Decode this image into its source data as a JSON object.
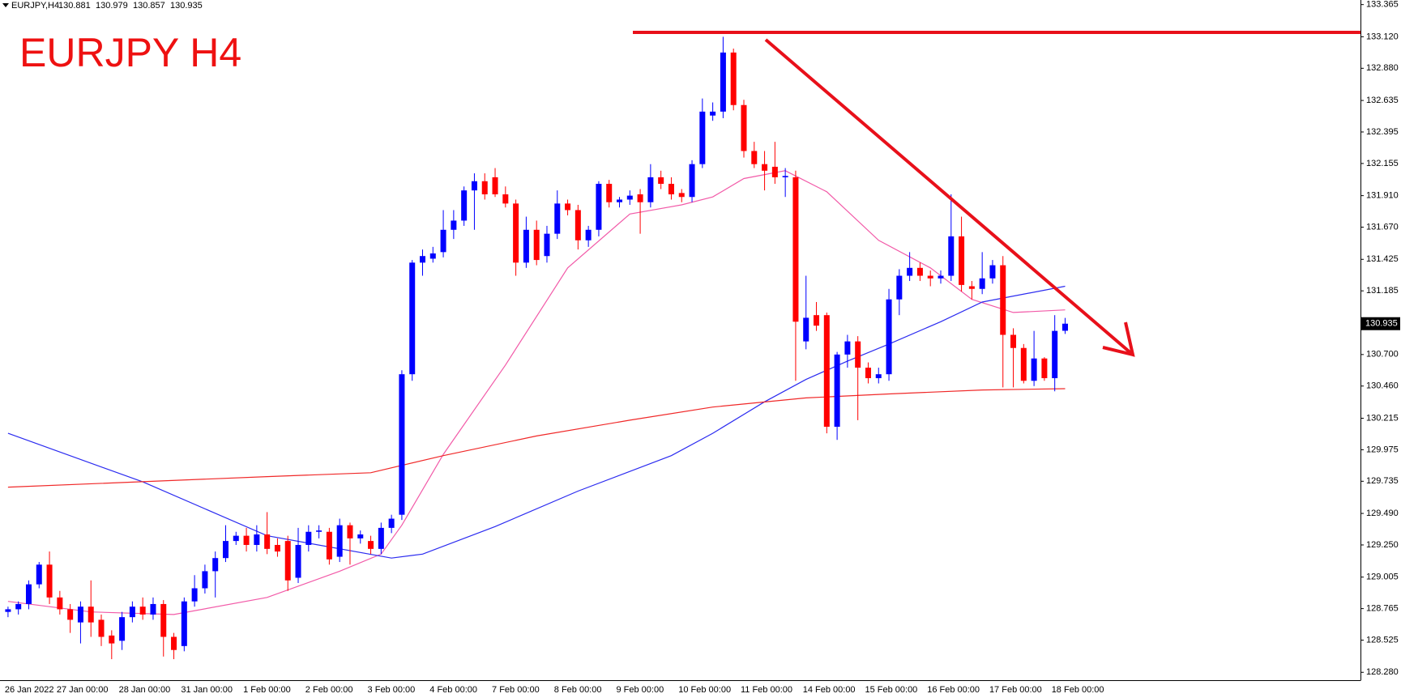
{
  "chart_data": {
    "type": "candlestick",
    "title": "EURJPY H4",
    "symbol": "EURJPY,H4",
    "quote": [
      130.881,
      130.979,
      130.857,
      130.935
    ],
    "last_price": 130.935,
    "up_color": "#0000ff",
    "down_color": "#ff0000",
    "grid": false,
    "ylim": [
      128.22,
      133.4
    ],
    "yticks": [
      133.365,
      {
        "value": 133.12,
        "label": "133.120"
      },
      {
        "value": 132.88,
        "label": "132.880"
      },
      132.635,
      132.395,
      132.155,
      {
        "value": 131.91,
        "label": "131.910"
      },
      {
        "value": 131.67,
        "label": "131.670"
      },
      131.425,
      131.185,
      {
        "value": 130.7,
        "label": "130.700"
      },
      {
        "value": 130.46,
        "label": "130.460"
      },
      130.215,
      129.975,
      129.735,
      {
        "value": 129.49,
        "label": "129.490"
      },
      {
        "value": 129.25,
        "label": "129.250"
      },
      129.005,
      128.765,
      128.525,
      {
        "value": 128.28,
        "label": "128.280"
      }
    ],
    "categories": [
      "26 Jan 2022",
      null,
      null,
      null,
      null,
      "27 Jan 00:00",
      null,
      null,
      null,
      null,
      null,
      "28 Jan 00:00",
      null,
      null,
      null,
      null,
      null,
      "31 Jan 00:00",
      null,
      null,
      null,
      null,
      null,
      "1 Feb 00:00",
      null,
      null,
      null,
      null,
      null,
      "2 Feb 00:00",
      null,
      null,
      null,
      null,
      null,
      "3 Feb 00:00",
      null,
      null,
      null,
      null,
      null,
      "4 Feb 00:00",
      null,
      null,
      null,
      null,
      null,
      "7 Feb 00:00",
      null,
      null,
      null,
      null,
      null,
      "8 Feb 00:00",
      null,
      null,
      null,
      null,
      null,
      "9 Feb 00:00",
      null,
      null,
      null,
      null,
      null,
      "10 Feb 00:00",
      null,
      null,
      null,
      null,
      null,
      "11 Feb 00:00",
      null,
      null,
      null,
      null,
      null,
      "14 Feb 00:00",
      null,
      null,
      null,
      null,
      null,
      "15 Feb 00:00",
      null,
      null,
      null,
      null,
      null,
      "16 Feb 00:00",
      null,
      null,
      null,
      null,
      null,
      "17 Feb 00:00",
      null,
      null,
      null,
      null,
      null,
      "18 Feb 00:00",
      null
    ],
    "open": [
      128.74,
      128.76,
      128.8,
      128.95,
      129.1,
      128.85,
      128.76,
      128.66,
      128.78,
      128.68,
      128.56,
      128.52,
      128.7,
      128.78,
      128.72,
      128.8,
      128.55,
      128.48,
      128.82,
      128.92,
      129.05,
      129.15,
      129.28,
      129.32,
      129.25,
      129.33,
      129.25,
      129.28,
      129.0,
      129.25,
      129.35,
      129.35,
      129.16,
      129.4,
      129.3,
      129.28,
      129.22,
      129.38,
      129.48,
      130.55,
      131.4,
      131.43,
      131.48,
      131.65,
      131.72,
      131.95,
      132.02,
      132.05,
      131.92,
      131.85,
      131.4,
      131.65,
      131.45,
      131.62,
      131.85,
      131.8,
      131.57,
      131.65,
      132.0,
      131.86,
      131.88,
      131.92,
      131.86,
      132.05,
      132.0,
      131.93,
      131.9,
      132.15,
      132.52,
      132.55,
      133.0,
      132.6,
      132.25,
      132.15,
      132.13,
      132.05,
      132.05,
      130.8,
      131.0,
      131.0,
      130.15,
      130.7,
      130.8,
      130.6,
      130.52,
      130.55,
      131.12,
      131.3,
      131.36,
      131.3,
      131.28,
      131.3,
      131.6,
      131.22,
      131.2,
      131.28,
      131.38,
      130.85,
      130.75,
      130.5,
      130.67,
      130.52,
      130.881
    ],
    "high": [
      128.78,
      128.82,
      128.98,
      129.12,
      129.2,
      128.9,
      128.8,
      128.82,
      128.98,
      128.72,
      128.6,
      128.74,
      128.82,
      128.85,
      128.85,
      128.83,
      128.58,
      128.85,
      129.02,
      129.1,
      129.2,
      129.4,
      129.35,
      129.38,
      129.4,
      129.5,
      129.3,
      129.32,
      129.38,
      129.4,
      129.4,
      129.38,
      129.45,
      129.42,
      129.36,
      129.32,
      129.42,
      129.48,
      130.58,
      131.42,
      131.5,
      131.52,
      131.8,
      131.8,
      131.98,
      132.08,
      132.08,
      132.12,
      131.98,
      131.88,
      131.75,
      131.72,
      131.68,
      131.95,
      131.88,
      131.84,
      131.68,
      132.02,
      132.03,
      131.9,
      131.95,
      131.96,
      132.15,
      132.1,
      132.05,
      131.96,
      132.18,
      132.65,
      132.62,
      133.12,
      133.03,
      132.64,
      132.32,
      132.25,
      132.32,
      132.12,
      132.1,
      131.3,
      131.1,
      131.02,
      130.72,
      130.85,
      130.84,
      130.64,
      130.6,
      131.2,
      131.35,
      131.48,
      131.4,
      131.34,
      131.34,
      131.92,
      131.75,
      131.26,
      131.48,
      131.42,
      131.45,
      130.9,
      130.78,
      130.88,
      130.68,
      131.0,
      130.979
    ],
    "low": [
      128.7,
      128.72,
      128.76,
      128.92,
      128.8,
      128.72,
      128.58,
      128.5,
      128.55,
      128.48,
      128.38,
      128.45,
      128.66,
      128.68,
      128.68,
      128.4,
      128.38,
      128.44,
      128.78,
      128.88,
      128.85,
      129.12,
      129.25,
      129.2,
      129.2,
      129.18,
      129.16,
      128.9,
      128.96,
      129.2,
      129.3,
      129.1,
      129.12,
      129.1,
      129.26,
      129.18,
      129.18,
      129.34,
      129.44,
      130.5,
      131.3,
      131.4,
      131.44,
      131.58,
      131.68,
      131.65,
      131.88,
      131.9,
      131.82,
      131.3,
      131.36,
      131.38,
      131.4,
      131.58,
      131.76,
      131.5,
      131.52,
      131.6,
      131.82,
      131.82,
      131.84,
      131.62,
      131.82,
      131.96,
      131.88,
      131.86,
      131.86,
      132.12,
      132.48,
      132.5,
      132.56,
      132.2,
      132.12,
      131.95,
      132.0,
      131.9,
      130.5,
      130.74,
      130.88,
      130.1,
      130.05,
      130.6,
      130.2,
      130.48,
      130.48,
      130.5,
      131.0,
      131.26,
      131.26,
      131.22,
      131.24,
      131.26,
      131.18,
      131.12,
      131.16,
      131.24,
      130.45,
      130.45,
      130.48,
      130.46,
      130.5,
      130.42,
      130.857
    ],
    "close": [
      128.76,
      128.8,
      128.95,
      129.1,
      128.85,
      128.76,
      128.68,
      128.78,
      128.66,
      128.55,
      128.5,
      128.7,
      128.78,
      128.72,
      128.8,
      128.55,
      128.45,
      128.82,
      128.92,
      129.05,
      129.15,
      129.28,
      129.32,
      129.25,
      129.33,
      129.22,
      129.2,
      128.98,
      129.25,
      129.35,
      129.36,
      129.14,
      129.4,
      129.3,
      129.33,
      129.22,
      129.38,
      129.45,
      130.55,
      131.4,
      131.45,
      131.47,
      131.65,
      131.72,
      131.95,
      132.02,
      131.92,
      131.92,
      131.85,
      131.4,
      131.65,
      131.42,
      131.62,
      131.85,
      131.8,
      131.57,
      131.65,
      132.0,
      131.86,
      131.88,
      131.91,
      131.86,
      132.05,
      132.0,
      131.92,
      131.9,
      132.15,
      132.55,
      132.55,
      133.0,
      132.6,
      132.25,
      132.15,
      132.1,
      132.05,
      132.06,
      130.95,
      130.98,
      130.92,
      130.15,
      130.7,
      130.8,
      130.6,
      130.52,
      130.55,
      131.12,
      131.3,
      131.36,
      131.3,
      131.28,
      131.3,
      131.6,
      131.23,
      131.2,
      131.28,
      131.38,
      130.85,
      130.75,
      130.5,
      130.67,
      130.52,
      130.88,
      130.935
    ],
    "overlays": [
      {
        "color": "#f25aa8",
        "x": [
          0,
          8,
          16,
          25,
          32,
          36,
          38,
          42,
          48,
          54,
          60,
          65,
          68,
          71,
          75,
          79,
          84,
          89,
          93,
          97,
          102
        ],
        "values": [
          128.82,
          128.74,
          128.72,
          128.85,
          129.05,
          129.18,
          129.4,
          129.94,
          130.62,
          131.36,
          131.77,
          131.84,
          131.9,
          132.04,
          132.1,
          131.94,
          131.57,
          131.36,
          131.12,
          131.02,
          131.04
        ]
      },
      {
        "color": "#2b2bf0",
        "x": [
          0,
          13,
          25,
          37,
          40,
          47,
          55,
          64,
          68,
          73,
          77,
          81,
          85,
          90,
          94,
          102
        ],
        "values": [
          130.1,
          129.73,
          129.32,
          129.15,
          129.18,
          129.39,
          129.66,
          129.93,
          130.1,
          130.34,
          130.51,
          130.65,
          130.78,
          130.95,
          131.1,
          131.22
        ]
      },
      {
        "color": "#f02828",
        "x": [
          0,
          25,
          35,
          42,
          51,
          60,
          68,
          77,
          85,
          94,
          102
        ],
        "values": [
          129.69,
          129.77,
          129.8,
          129.93,
          130.08,
          130.2,
          130.3,
          130.37,
          130.4,
          130.43,
          130.44
        ]
      }
    ]
  }
}
